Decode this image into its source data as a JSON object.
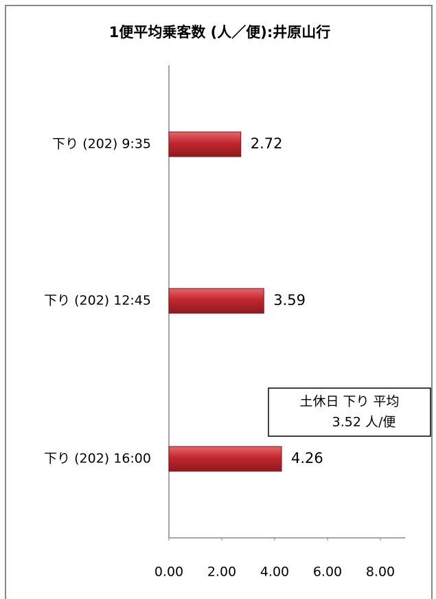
{
  "chart_data": {
    "type": "barh",
    "title": "1便平均乗客数 (人／便):井原山行",
    "categories": [
      "下り (202) 9:35",
      "下り (202) 12:45",
      "下り (202) 16:00"
    ],
    "values": [
      2.72,
      3.59,
      4.26
    ],
    "color": "#c0272d",
    "xlim": [
      0,
      8
    ],
    "xticks": [
      {
        "value": 0,
        "label": "0.00"
      },
      {
        "value": 2,
        "label": "2.00"
      },
      {
        "value": 4,
        "label": "4.00"
      },
      {
        "value": 6,
        "label": "6.00"
      },
      {
        "value": 8,
        "label": "8.00"
      }
    ],
    "annotation": [
      "土休日 下り 平均",
      "3.52 人/便"
    ]
  }
}
